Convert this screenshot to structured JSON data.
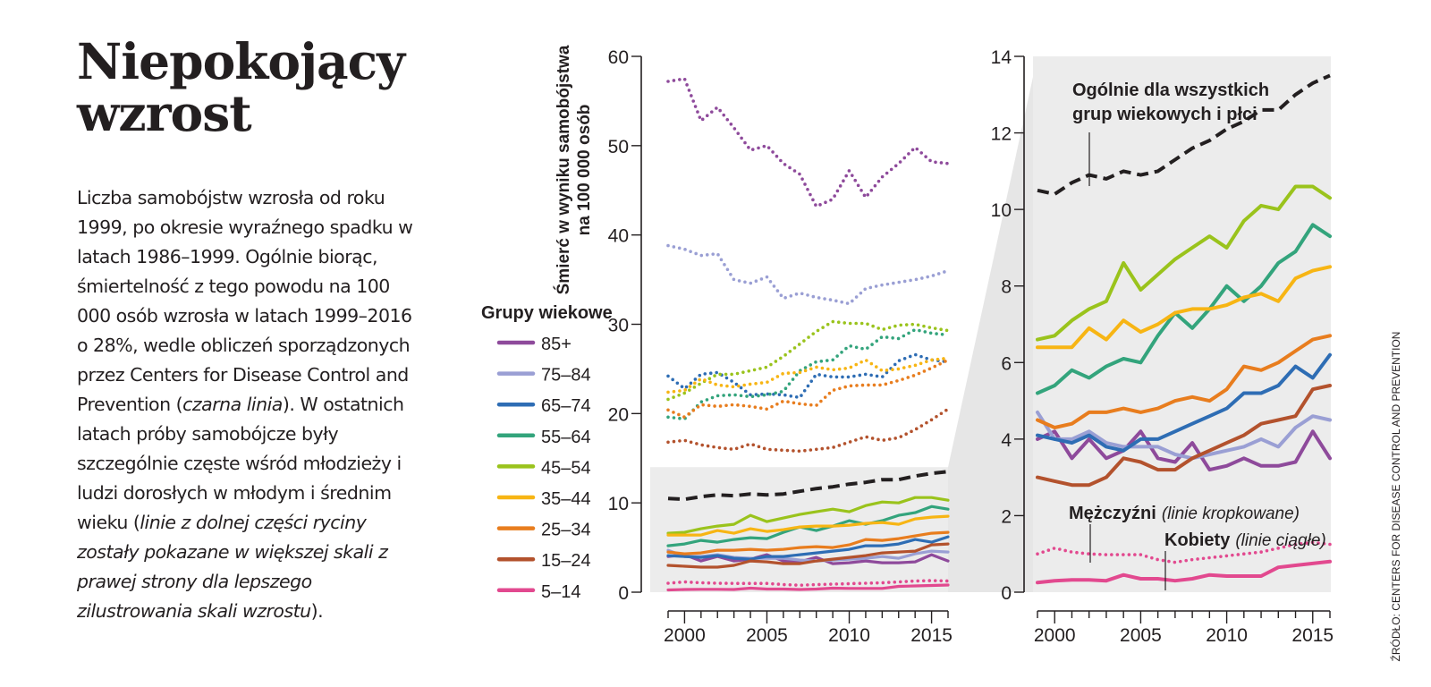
{
  "article": {
    "title": "Niepokojący wzrost",
    "paragraph_parts": [
      {
        "text": "Liczba samobójstw wzrosła od roku 1999, po okresie wyraźnego spadku w latach 1986–1999. Ogólnie biorąc, śmiertelność z tego powodu na 100 000 osób wzrosła w latach 1999–2016 o 28%, wedle obliczeń sporządzonych przez Centers for Disease Control and Prevention (",
        "italic": false
      },
      {
        "text": "czarna linia",
        "italic": true
      },
      {
        "text": "). W ostatnich latach próby samobójcze były szczególnie częste wśród młodzieży i ludzi dorosłych w młodym i średnim wieku (",
        "italic": false
      },
      {
        "text": "linie z dolnej części ryciny zostały pokazane w większej skali z prawej strony dla lepszego zilustrowania skali wzrostu",
        "italic": true
      },
      {
        "text": ").",
        "italic": false
      }
    ]
  },
  "source_note": "ŹRÓDŁO: CENTERS FOR DISEASE CONTROL AND PREVENTION",
  "chart_data": [
    {
      "type": "line",
      "name": "full-scale",
      "title": "",
      "ylabel": "Śmierć w wyniku samobójstwa na 100 000 osób",
      "ylabel_lines": [
        "Śmierć w wyniku samobójstwa",
        "na 100 000 osób"
      ],
      "xlabel": "",
      "xlim": [
        1999,
        2016
      ],
      "ylim": [
        0,
        60
      ],
      "yticks": [
        0,
        10,
        20,
        30,
        40,
        50,
        60
      ],
      "xticks_labeled": [
        2000,
        2005,
        2010,
        2015
      ],
      "grid": false,
      "zoom_region": {
        "ylim": [
          0,
          14
        ],
        "note": "shaded region enlarged in right chart"
      },
      "legend": {
        "title": "Grupy wiekowe",
        "placement": "left",
        "entries": [
          {
            "label": "85+",
            "color": "#8e4a9b"
          },
          {
            "label": "75–84",
            "color": "#9a9fd4"
          },
          {
            "label": "65–74",
            "color": "#2e6db4"
          },
          {
            "label": "55–64",
            "color": "#33a47c"
          },
          {
            "label": "45–54",
            "color": "#9ac31c"
          },
          {
            "label": "35–44",
            "color": "#f7b514"
          },
          {
            "label": "25–34",
            "color": "#e87d1e"
          },
          {
            "label": "15–24",
            "color": "#b3522d"
          },
          {
            "label": "5–14",
            "color": "#e2498f"
          }
        ]
      }
    },
    {
      "type": "line",
      "name": "zoomed-scale",
      "xlim": [
        1999,
        2016
      ],
      "ylim": [
        0,
        14
      ],
      "yticks": [
        0,
        2,
        4,
        6,
        8,
        10,
        12,
        14
      ],
      "xticks_labeled": [
        2000,
        2005,
        2010,
        2015
      ],
      "grid": false,
      "annotations": [
        {
          "bold": "Ogólnie dla wszystkich grup wiekowych i płci",
          "lines": [
            "Ogólnie dla wszystkich",
            "grup wiekowych i płci"
          ]
        },
        {
          "bold": "Mężczyźni",
          "italic": "(linie kropkowane)"
        },
        {
          "bold": "Kobiety",
          "italic": "(linie ciągłe)"
        }
      ]
    }
  ],
  "series_data": {
    "x": [
      1999,
      2000,
      2001,
      2002,
      2003,
      2004,
      2005,
      2006,
      2007,
      2008,
      2009,
      2010,
      2011,
      2012,
      2013,
      2014,
      2015,
      2016
    ],
    "overall": {
      "name": "Ogólnie",
      "style": "dashed",
      "color": "#231f20",
      "values": [
        10.5,
        10.4,
        10.7,
        10.9,
        10.8,
        11.0,
        10.9,
        11.0,
        11.3,
        11.6,
        11.8,
        12.1,
        12.3,
        12.6,
        12.6,
        13.0,
        13.3,
        13.5
      ]
    },
    "male": [
      {
        "group": "85+",
        "color": "#8e4a9b",
        "values": [
          57.2,
          57.5,
          52.8,
          54.3,
          52.0,
          49.5,
          50.0,
          48.0,
          46.8,
          43.2,
          44.0,
          47.2,
          44.2,
          46.5,
          48.0,
          49.8,
          48.2,
          48.0
        ]
      },
      {
        "group": "75–84",
        "color": "#9a9fd4",
        "values": [
          38.8,
          38.4,
          37.7,
          37.9,
          35.0,
          34.6,
          35.3,
          32.9,
          33.5,
          33.0,
          32.7,
          32.3,
          34.0,
          34.4,
          34.7,
          35.0,
          35.4,
          36.0
        ]
      },
      {
        "group": "65–74",
        "color": "#2e6db4",
        "values": [
          24.2,
          22.8,
          24.4,
          24.6,
          23.5,
          22.1,
          22.2,
          22.1,
          21.8,
          24.4,
          24.1,
          24.1,
          24.4,
          24.1,
          25.9,
          26.6,
          26.0,
          25.8
        ]
      },
      {
        "group": "55–64",
        "color": "#33a47c",
        "values": [
          19.6,
          19.4,
          21.3,
          22.0,
          22.1,
          21.9,
          22.1,
          22.5,
          24.8,
          25.8,
          26.0,
          27.6,
          27.2,
          28.6,
          28.4,
          29.4,
          29.0,
          28.8
        ]
      },
      {
        "group": "45–54",
        "color": "#9ac31c",
        "values": [
          21.6,
          22.3,
          23.4,
          24.4,
          24.4,
          24.8,
          25.2,
          26.4,
          27.8,
          29.2,
          30.3,
          30.1,
          30.1,
          29.4,
          29.9,
          30.0,
          29.6,
          29.3
        ]
      },
      {
        "group": "35–44",
        "color": "#f7b514",
        "values": [
          22.4,
          22.6,
          23.9,
          23.2,
          23.0,
          23.3,
          23.5,
          24.5,
          24.6,
          25.2,
          24.9,
          25.1,
          26.0,
          24.8,
          25.0,
          25.4,
          26.0,
          26.2
        ]
      },
      {
        "group": "25–34",
        "color": "#e87d1e",
        "values": [
          20.4,
          19.6,
          21.0,
          20.8,
          21.0,
          20.8,
          20.5,
          21.4,
          21.1,
          20.9,
          22.6,
          23.1,
          23.2,
          23.2,
          23.7,
          24.3,
          25.1,
          26.0
        ]
      },
      {
        "group": "15–24",
        "color": "#b3522d",
        "values": [
          16.8,
          17.0,
          16.5,
          16.2,
          16.0,
          16.6,
          16.0,
          15.9,
          15.8,
          16.0,
          16.2,
          16.8,
          17.4,
          17.0,
          17.3,
          18.2,
          19.3,
          20.5
        ]
      },
      {
        "group": "5–14",
        "color": "#e2498f",
        "values": [
          1.0,
          1.15,
          1.05,
          1.0,
          0.98,
          0.98,
          0.98,
          0.85,
          0.78,
          0.85,
          0.9,
          0.95,
          1.0,
          1.05,
          1.15,
          1.25,
          1.3,
          1.25
        ]
      }
    ],
    "female": [
      {
        "group": "85+",
        "color": "#8e4a9b",
        "values": [
          4.0,
          4.2,
          3.5,
          4.0,
          3.5,
          3.7,
          4.2,
          3.5,
          3.4,
          3.9,
          3.2,
          3.3,
          3.5,
          3.3,
          3.3,
          3.4,
          4.2,
          3.5
        ]
      },
      {
        "group": "75–84",
        "color": "#9a9fd4",
        "values": [
          4.7,
          4.0,
          4.0,
          4.2,
          3.9,
          3.8,
          3.8,
          3.8,
          3.6,
          3.5,
          3.6,
          3.7,
          3.8,
          4.0,
          3.8,
          4.3,
          4.6,
          4.5
        ]
      },
      {
        "group": "65–74",
        "color": "#2e6db4",
        "values": [
          4.1,
          4.0,
          3.9,
          4.1,
          3.8,
          3.7,
          4.0,
          4.0,
          4.2,
          4.4,
          4.6,
          4.8,
          5.2,
          5.2,
          5.4,
          5.9,
          5.6,
          6.2
        ]
      },
      {
        "group": "55–64",
        "color": "#33a47c",
        "values": [
          5.2,
          5.4,
          5.8,
          5.6,
          5.9,
          6.1,
          6.0,
          6.7,
          7.3,
          6.9,
          7.4,
          8.0,
          7.6,
          8.0,
          8.6,
          8.9,
          9.6,
          9.3
        ]
      },
      {
        "group": "45–54",
        "color": "#9ac31c",
        "values": [
          6.6,
          6.7,
          7.1,
          7.4,
          7.6,
          8.6,
          7.9,
          8.3,
          8.7,
          9.0,
          9.3,
          9.0,
          9.7,
          10.1,
          10.0,
          10.6,
          10.6,
          10.3
        ]
      },
      {
        "group": "35–44",
        "color": "#f7b514",
        "values": [
          6.4,
          6.4,
          6.4,
          6.9,
          6.6,
          7.1,
          6.8,
          7.0,
          7.3,
          7.4,
          7.4,
          7.5,
          7.7,
          7.8,
          7.6,
          8.2,
          8.4,
          8.5
        ]
      },
      {
        "group": "25–34",
        "color": "#e87d1e",
        "values": [
          4.5,
          4.3,
          4.4,
          4.7,
          4.7,
          4.8,
          4.7,
          4.8,
          5.0,
          5.1,
          5.0,
          5.3,
          5.9,
          5.8,
          6.0,
          6.3,
          6.6,
          6.7
        ]
      },
      {
        "group": "15–24",
        "color": "#b3522d",
        "values": [
          3.0,
          2.9,
          2.8,
          2.8,
          3.0,
          3.5,
          3.4,
          3.2,
          3.2,
          3.5,
          3.7,
          3.9,
          4.1,
          4.4,
          4.5,
          4.6,
          5.3,
          5.4
        ]
      },
      {
        "group": "5–14",
        "color": "#e2498f",
        "values": [
          0.25,
          0.3,
          0.32,
          0.32,
          0.3,
          0.45,
          0.35,
          0.35,
          0.3,
          0.35,
          0.45,
          0.42,
          0.42,
          0.42,
          0.65,
          0.7,
          0.75,
          0.8
        ]
      }
    ]
  }
}
